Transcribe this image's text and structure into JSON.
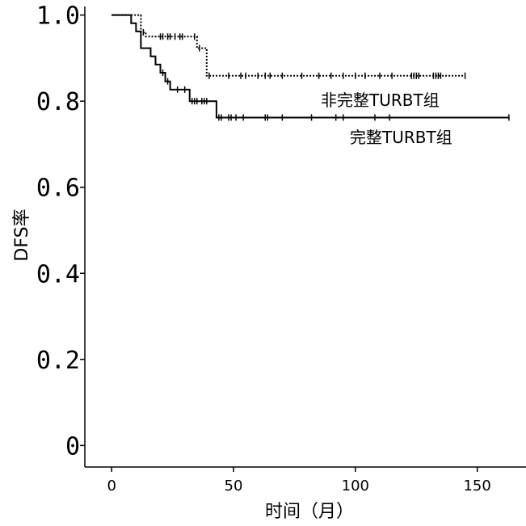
{
  "chart_data": {
    "type": "line",
    "xlabel": "时间（月）",
    "ylabel": "DFS率",
    "xlim": [
      -11,
      170
    ],
    "ylim": [
      -0.05,
      1.02
    ],
    "xticks": [
      0,
      50,
      100,
      150
    ],
    "xtick_labels": [
      "0",
      "50",
      "100",
      "150"
    ],
    "yticks": [
      0,
      0.2,
      0.4,
      0.6,
      0.8,
      1.0
    ],
    "ytick_labels": [
      "0",
      "0.2",
      "0.4",
      "0.6",
      "0.8",
      "1.0"
    ],
    "grid": false,
    "series": [
      {
        "name": "非完整TURBT组",
        "line_style": "dotted",
        "color": "#000000",
        "steps": [
          [
            0,
            1.0
          ],
          [
            12,
            0.96
          ],
          [
            14,
            0.95
          ],
          [
            35,
            0.923
          ],
          [
            39,
            0.859
          ],
          [
            145,
            0.859
          ]
        ],
        "censored": [
          [
            13,
            0.96
          ],
          [
            20,
            0.95
          ],
          [
            21,
            0.95
          ],
          [
            23,
            0.95
          ],
          [
            24,
            0.95
          ],
          [
            26,
            0.95
          ],
          [
            28,
            0.95
          ],
          [
            29,
            0.95
          ],
          [
            34,
            0.95
          ],
          [
            36,
            0.923
          ],
          [
            40,
            0.859
          ],
          [
            48,
            0.859
          ],
          [
            53,
            0.859
          ],
          [
            55,
            0.859
          ],
          [
            60,
            0.859
          ],
          [
            63,
            0.859
          ],
          [
            65,
            0.859
          ],
          [
            70,
            0.859
          ],
          [
            78,
            0.859
          ],
          [
            85,
            0.859
          ],
          [
            90,
            0.859
          ],
          [
            95,
            0.859
          ],
          [
            100,
            0.859
          ],
          [
            104,
            0.859
          ],
          [
            110,
            0.859
          ],
          [
            115,
            0.859
          ],
          [
            123,
            0.859
          ],
          [
            124,
            0.859
          ],
          [
            125,
            0.859
          ],
          [
            126,
            0.859
          ],
          [
            132,
            0.859
          ],
          [
            133,
            0.859
          ],
          [
            134,
            0.859
          ],
          [
            135,
            0.859
          ],
          [
            145,
            0.859
          ]
        ]
      },
      {
        "name": "完整TURBT组",
        "line_style": "solid",
        "color": "#000000",
        "steps": [
          [
            0,
            1.0
          ],
          [
            8,
            0.981
          ],
          [
            10,
            0.962
          ],
          [
            12,
            0.923
          ],
          [
            16,
            0.904
          ],
          [
            18,
            0.885
          ],
          [
            20,
            0.866
          ],
          [
            22,
            0.846
          ],
          [
            24,
            0.827
          ],
          [
            32,
            0.8
          ],
          [
            43,
            0.762
          ],
          [
            163,
            0.762
          ]
        ],
        "censored": [
          [
            21,
            0.866
          ],
          [
            23,
            0.846
          ],
          [
            27,
            0.827
          ],
          [
            30,
            0.827
          ],
          [
            33,
            0.8
          ],
          [
            34,
            0.8
          ],
          [
            35,
            0.8
          ],
          [
            37,
            0.8
          ],
          [
            38,
            0.8
          ],
          [
            39,
            0.8
          ],
          [
            44,
            0.762
          ],
          [
            45,
            0.762
          ],
          [
            48,
            0.762
          ],
          [
            49,
            0.762
          ],
          [
            51,
            0.762
          ],
          [
            54,
            0.762
          ],
          [
            63,
            0.762
          ],
          [
            64,
            0.762
          ],
          [
            70,
            0.762
          ],
          [
            82,
            0.762
          ],
          [
            92,
            0.762
          ],
          [
            95,
            0.762
          ],
          [
            108,
            0.762
          ],
          [
            114,
            0.762
          ],
          [
            163,
            0.762
          ]
        ]
      }
    ]
  }
}
